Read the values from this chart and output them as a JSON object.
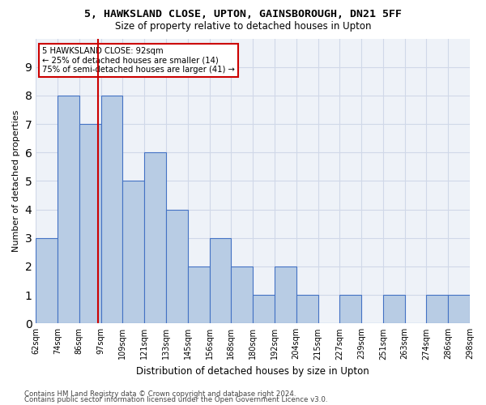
{
  "title": "5, HAWKSLAND CLOSE, UPTON, GAINSBOROUGH, DN21 5FF",
  "subtitle": "Size of property relative to detached houses in Upton",
  "xlabel": "Distribution of detached houses by size in Upton",
  "ylabel": "Number of detached properties",
  "bin_labels": [
    "62sqm",
    "74sqm",
    "86sqm",
    "97sqm",
    "109sqm",
    "121sqm",
    "133sqm",
    "145sqm",
    "156sqm",
    "168sqm",
    "180sqm",
    "192sqm",
    "204sqm",
    "215sqm",
    "227sqm",
    "239sqm",
    "251sqm",
    "263sqm",
    "274sqm",
    "286sqm",
    "298sqm"
  ],
  "bar_values": [
    3,
    8,
    7,
    8,
    5,
    6,
    4,
    2,
    3,
    2,
    1,
    2,
    1,
    0,
    1,
    0,
    1,
    0,
    1,
    1
  ],
  "bar_color": "#b8cce4",
  "bar_edge_color": "#4472c4",
  "bar_edge_width": 0.8,
  "grid_color": "#d0d8e8",
  "background_color": "#eef2f8",
  "red_line_x": 2.35,
  "annotation_text": "5 HAWKSLAND CLOSE: 92sqm\n← 25% of detached houses are smaller (14)\n75% of semi-detached houses are larger (41) →",
  "annotation_box_color": "#cc0000",
  "ylim": [
    0,
    10
  ],
  "yticks": [
    0,
    1,
    2,
    3,
    4,
    5,
    6,
    7,
    8,
    9,
    10
  ],
  "footer_line1": "Contains HM Land Registry data © Crown copyright and database right 2024.",
  "footer_line2": "Contains public sector information licensed under the Open Government Licence v3.0."
}
